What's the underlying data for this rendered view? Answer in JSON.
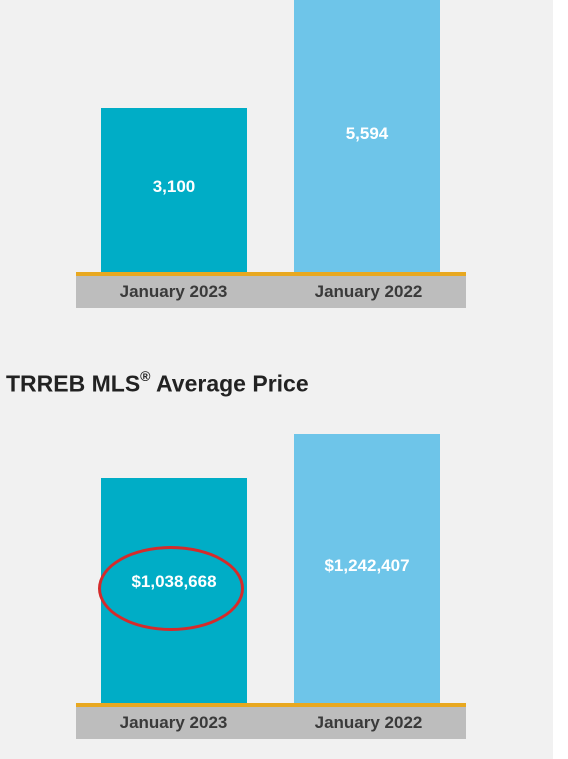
{
  "colors": {
    "bar_2023": "#00adc6",
    "bar_2022": "#6ec5e9",
    "baseline": "#e8a820",
    "axis_band": "#bdbdbd",
    "highlight": "#d42b2b"
  },
  "chart_data": [
    {
      "type": "bar",
      "title": "",
      "categories": [
        "January 2023",
        "January 2022"
      ],
      "values": [
        3100,
        5594
      ],
      "value_labels": [
        "3,100",
        "5,594"
      ],
      "ylim": [
        0,
        5150
      ],
      "grid": false
    },
    {
      "type": "bar",
      "title": "TRREB MLS",
      "title_sup": "®",
      "title_suffix": " Average Price",
      "categories": [
        "January 2023",
        "January 2022"
      ],
      "values": [
        1038668,
        1242407
      ],
      "value_labels": [
        "$1,038,668",
        "$1,242,407"
      ],
      "ylim": [
        0,
        1243000
      ],
      "grid": false,
      "highlighted_category": "January 2023"
    }
  ]
}
